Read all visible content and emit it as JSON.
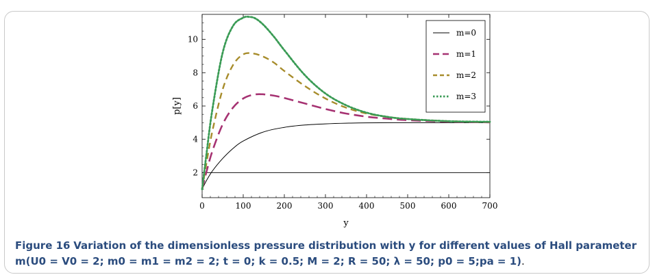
{
  "figure": {
    "label": "Figure 16",
    "title": "Variation of the dimensionless pressure distribution with y for different values of Hall parameter",
    "params": "m(U0 = V0 = 2; m0 = m1 = m2 = 2; t = 0; k = 0.5; M = 2; R = 50; λ = 50; p0 = 5;pa = 1)",
    "end": "."
  },
  "chart_data": {
    "type": "line",
    "xlabel": "y",
    "ylabel": "p[y]",
    "xlim": [
      0,
      700
    ],
    "ylim": [
      0.5,
      11.5
    ],
    "xticks": [
      0,
      100,
      200,
      300,
      400,
      500,
      600,
      700
    ],
    "yticks": [
      2,
      4,
      6,
      8,
      10
    ],
    "reference_line_y": 2,
    "legend_position": "top-right",
    "series": [
      {
        "name": "m=0",
        "color": "#000000",
        "style": "solid",
        "x": [
          0,
          10,
          25,
          50,
          75,
          100,
          150,
          200,
          250,
          300,
          350,
          400,
          500,
          600,
          700
        ],
        "y": [
          1.0,
          1.5,
          2.1,
          2.85,
          3.45,
          3.9,
          4.45,
          4.72,
          4.86,
          4.93,
          4.97,
          4.99,
          5.0,
          5.0,
          5.0
        ]
      },
      {
        "name": "m=1",
        "color": "#a63272",
        "style": "longdash",
        "x": [
          0,
          10,
          25,
          50,
          75,
          100,
          125,
          150,
          175,
          200,
          250,
          300,
          350,
          400,
          450,
          500,
          600,
          700
        ],
        "y": [
          1.0,
          2.0,
          3.3,
          4.9,
          5.9,
          6.45,
          6.68,
          6.7,
          6.62,
          6.48,
          6.15,
          5.82,
          5.55,
          5.36,
          5.24,
          5.15,
          5.06,
          5.02
        ]
      },
      {
        "name": "m=2",
        "color": "#a78c2b",
        "style": "dash",
        "x": [
          0,
          10,
          25,
          50,
          75,
          100,
          125,
          150,
          175,
          200,
          250,
          300,
          350,
          400,
          450,
          500,
          600,
          700
        ],
        "y": [
          1.0,
          2.5,
          4.5,
          7.0,
          8.45,
          9.1,
          9.15,
          8.95,
          8.6,
          8.1,
          7.2,
          6.45,
          5.9,
          5.55,
          5.35,
          5.22,
          5.09,
          5.04
        ]
      },
      {
        "name": "m=3",
        "color": "#3a9b55",
        "style": "dot",
        "x": [
          0,
          10,
          25,
          50,
          75,
          100,
          115,
          130,
          150,
          175,
          200,
          250,
          300,
          350,
          400,
          450,
          500,
          600,
          700
        ],
        "y": [
          1.0,
          3.0,
          5.8,
          9.2,
          10.8,
          11.3,
          11.35,
          11.25,
          10.85,
          10.15,
          9.35,
          7.85,
          6.75,
          6.05,
          5.6,
          5.35,
          5.22,
          5.09,
          5.05
        ]
      }
    ]
  }
}
